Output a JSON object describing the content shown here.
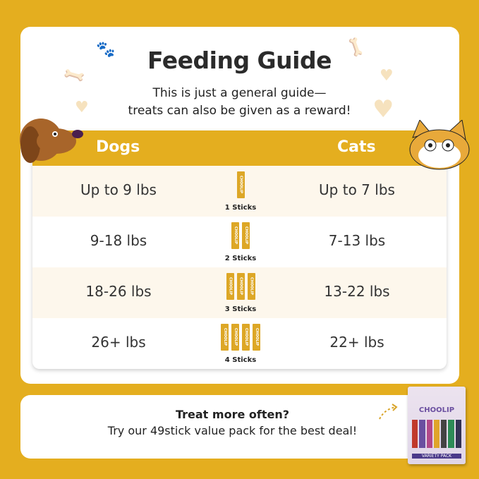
{
  "title": "Feeding Guide",
  "subtitle": [
    "This is just a general guide—",
    "treats can also be given as a reward!"
  ],
  "table": {
    "headers": {
      "dogs": "Dogs",
      "cats": "Cats"
    },
    "rows": [
      {
        "dogs": "Up to 9 lbs",
        "sticks": 1,
        "sticks_label": "1 Sticks",
        "cats": "Up to 7 lbs"
      },
      {
        "dogs": "9-18 lbs",
        "sticks": 2,
        "sticks_label": "2 Sticks",
        "cats": "7-13 lbs"
      },
      {
        "dogs": "18-26 lbs",
        "sticks": 3,
        "sticks_label": "3 Sticks",
        "cats": "13-22 lbs"
      },
      {
        "dogs": "26+ lbs",
        "sticks": 4,
        "sticks_label": "4 Sticks",
        "cats": "22+ lbs"
      }
    ]
  },
  "stick_brand": "CHOOLIP",
  "promo": {
    "line1": "Treat more often?",
    "line2": "Try our 49stick value pack for the best deal!"
  },
  "product": {
    "brand": "CHOOLIP",
    "label": "VARIETY PACK"
  },
  "colors": {
    "accent": "#E4AE1F",
    "row_alt": "#FDF7EC"
  }
}
